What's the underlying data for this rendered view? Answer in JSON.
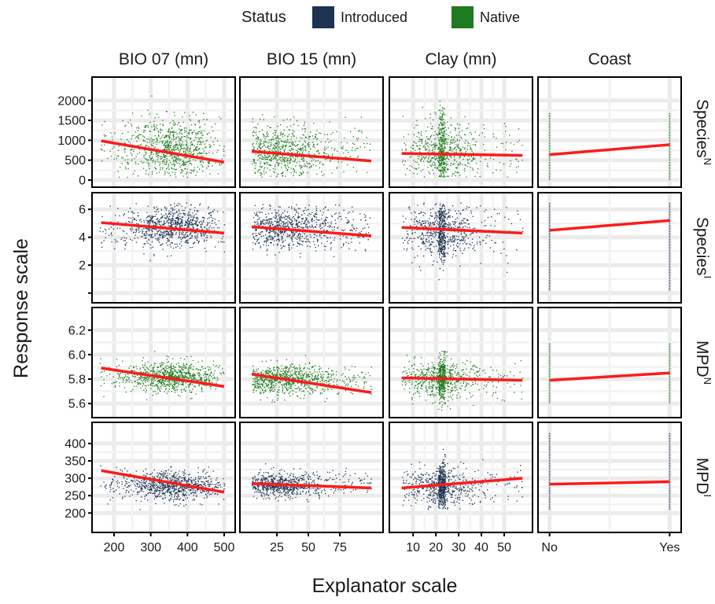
{
  "chart_data": {
    "type": "scatter",
    "xlabel": "Explanator scale",
    "ylabel": "Response scale",
    "grid": true,
    "legend": {
      "title": "Status",
      "position": "top",
      "entries": [
        {
          "name": "Introduced",
          "color": "#1c3352"
        },
        {
          "name": "Native",
          "color": "#1e7a1e"
        }
      ]
    },
    "trend_color": "#ff1a1a",
    "columns": [
      {
        "label": "BIO 07 (mn)",
        "xlim": [
          155,
          515
        ],
        "ticks": [
          200,
          300,
          400,
          500
        ],
        "tick_labels": [
          "200",
          "300",
          "400",
          "500"
        ],
        "data_range": [
          160,
          500
        ],
        "type": "continuous"
      },
      {
        "label": "BIO 15 (mn)",
        "xlim": [
          0,
          105
        ],
        "ticks": [
          25,
          50,
          75
        ],
        "tick_labels": [
          "25",
          "50",
          "75"
        ],
        "data_range": [
          5,
          100
        ],
        "type": "continuous"
      },
      {
        "label": "Clay (mn)",
        "xlim": [
          2,
          60
        ],
        "ticks": [
          10,
          20,
          30,
          40,
          50
        ],
        "tick_labels": [
          "10",
          "20",
          "30",
          "40",
          "50"
        ],
        "data_range": [
          5,
          58
        ],
        "type": "continuous"
      },
      {
        "label": "Coast",
        "xlim": [
          -0.05,
          1.05
        ],
        "ticks": [
          0,
          1
        ],
        "tick_labels": [
          "No",
          "Yes"
        ],
        "data_range": [
          0,
          1
        ],
        "type": "categorical"
      }
    ],
    "rows": [
      {
        "label": "Species",
        "superscript": "N",
        "status": "Native",
        "ylim": [
          -40,
          2450
        ],
        "ticks": [
          0,
          500,
          1000,
          1500,
          2000
        ],
        "tick_labels": [
          "0",
          "500",
          "1000",
          "1500",
          "2000"
        ]
      },
      {
        "label": "Species",
        "superscript": "I",
        "status": "Introduced",
        "ylim": [
          -0.3,
          6.8
        ],
        "ticks": [
          0,
          2,
          4,
          6
        ],
        "tick_labels": [
          "",
          "2",
          "4",
          "6"
        ]
      },
      {
        "label": "MPD",
        "superscript": "N",
        "status": "Native",
        "ylim": [
          5.53,
          6.34
        ],
        "ticks": [
          5.6,
          5.8,
          6.0,
          6.2
        ],
        "tick_labels": [
          "5.6",
          "5.8",
          "6.0",
          "6.2"
        ]
      },
      {
        "label": "MPD",
        "superscript": "I",
        "status": "Introduced",
        "ylim": [
          160,
          445
        ],
        "ticks": [
          200,
          250,
          300,
          350,
          400
        ],
        "tick_labels": [
          "200",
          "250",
          "300",
          "350",
          "400"
        ]
      }
    ],
    "panels": [
      {
        "row": 0,
        "col": 0,
        "trend": [
          [
            165,
            985
          ],
          [
            500,
            450
          ]
        ],
        "cloud": {
          "center": [
            360,
            800
          ],
          "spread": [
            60,
            380
          ],
          "y_range": [
            80,
            2300
          ]
        }
      },
      {
        "row": 0,
        "col": 1,
        "trend": [
          [
            5,
            720
          ],
          [
            100,
            480
          ]
        ],
        "cloud": {
          "center": [
            25,
            720
          ],
          "spread": [
            22,
            330
          ],
          "y_range": [
            80,
            1700
          ]
        }
      },
      {
        "row": 0,
        "col": 2,
        "trend": [
          [
            5,
            670
          ],
          [
            58,
            620
          ]
        ],
        "cloud": {
          "center": [
            22,
            700
          ],
          "spread": [
            9,
            380
          ],
          "y_range": [
            80,
            2000
          ]
        }
      },
      {
        "row": 0,
        "col": 3,
        "trend": [
          [
            0,
            640
          ],
          [
            1,
            890
          ]
        ],
        "strip": [
          0,
          1700
        ]
      },
      {
        "row": 1,
        "col": 0,
        "trend": [
          [
            165,
            5.05
          ],
          [
            500,
            4.3
          ]
        ],
        "cloud": {
          "center": [
            360,
            4.8
          ],
          "spread": [
            60,
            0.75
          ],
          "y_range": [
            0.8,
            6.5
          ]
        }
      },
      {
        "row": 1,
        "col": 1,
        "trend": [
          [
            5,
            4.75
          ],
          [
            100,
            4.1
          ]
        ],
        "cloud": {
          "center": [
            30,
            4.7
          ],
          "spread": [
            22,
            0.75
          ],
          "y_range": [
            2.5,
            6.4
          ]
        }
      },
      {
        "row": 1,
        "col": 2,
        "trend": [
          [
            5,
            4.7
          ],
          [
            58,
            4.3
          ]
        ],
        "cloud": {
          "center": [
            22,
            4.6
          ],
          "spread": [
            9,
            0.9
          ],
          "y_range": [
            0.7,
            6.5
          ]
        }
      },
      {
        "row": 1,
        "col": 3,
        "trend": [
          [
            0,
            4.5
          ],
          [
            1,
            5.2
          ]
        ],
        "strip": [
          0.2,
          6.5
        ]
      },
      {
        "row": 2,
        "col": 0,
        "trend": [
          [
            165,
            5.89
          ],
          [
            500,
            5.74
          ]
        ],
        "cloud": {
          "center": [
            360,
            5.82
          ],
          "spread": [
            60,
            0.06
          ],
          "y_range": [
            5.6,
            6.3
          ]
        }
      },
      {
        "row": 2,
        "col": 1,
        "trend": [
          [
            5,
            5.84
          ],
          [
            100,
            5.69
          ]
        ],
        "cloud": {
          "center": [
            30,
            5.8
          ],
          "spread": [
            22,
            0.06
          ],
          "y_range": [
            5.6,
            6.25
          ]
        }
      },
      {
        "row": 2,
        "col": 2,
        "trend": [
          [
            5,
            5.81
          ],
          [
            58,
            5.79
          ]
        ],
        "cloud": {
          "center": [
            22,
            5.8
          ],
          "spread": [
            9,
            0.07
          ],
          "y_range": [
            5.55,
            6.3
          ]
        }
      },
      {
        "row": 2,
        "col": 3,
        "trend": [
          [
            0,
            5.79
          ],
          [
            1,
            5.85
          ]
        ],
        "strip": [
          5.6,
          6.1
        ]
      },
      {
        "row": 3,
        "col": 0,
        "trend": [
          [
            165,
            322
          ],
          [
            500,
            260
          ]
        ],
        "cloud": {
          "center": [
            360,
            280
          ],
          "spread": [
            60,
            20
          ],
          "y_range": [
            210,
            440
          ]
        }
      },
      {
        "row": 3,
        "col": 1,
        "trend": [
          [
            5,
            285
          ],
          [
            100,
            272
          ]
        ],
        "cloud": {
          "center": [
            20,
            282
          ],
          "spread": [
            20,
            18
          ],
          "y_range": [
            220,
            430
          ]
        }
      },
      {
        "row": 3,
        "col": 2,
        "trend": [
          [
            5,
            272
          ],
          [
            58,
            300
          ]
        ],
        "cloud": {
          "center": [
            22,
            278
          ],
          "spread": [
            8,
            25
          ],
          "y_range": [
            210,
            410
          ]
        }
      },
      {
        "row": 3,
        "col": 3,
        "trend": [
          [
            0,
            283
          ],
          [
            1,
            290
          ]
        ],
        "strip": [
          210,
          430
        ]
      }
    ]
  }
}
